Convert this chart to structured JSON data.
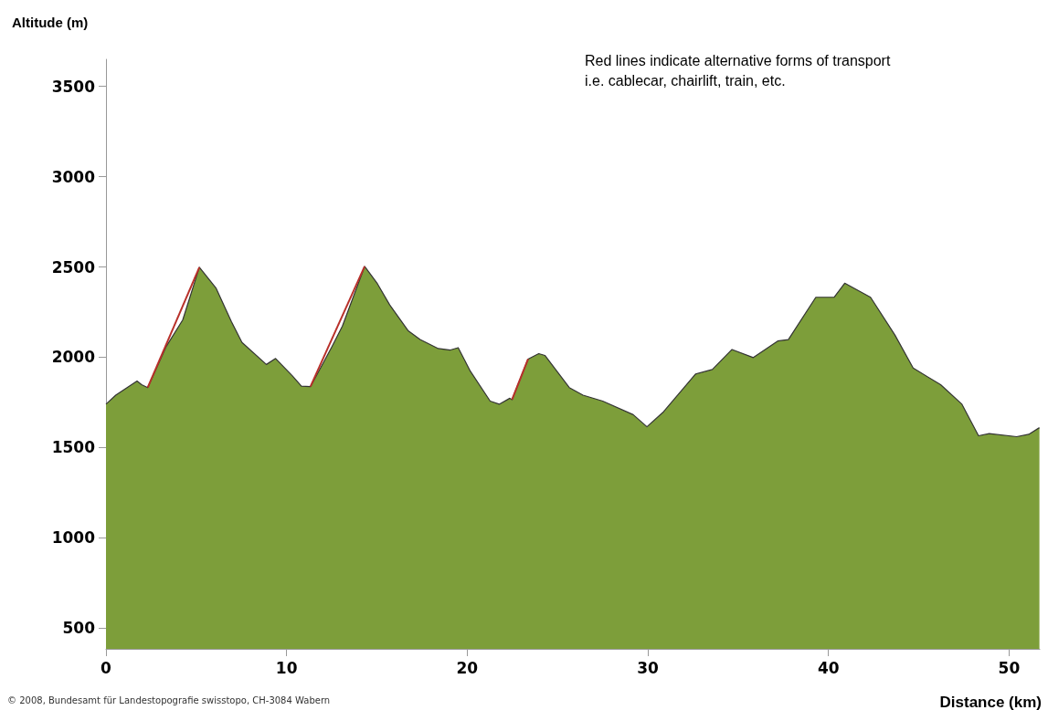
{
  "chart_data": {
    "type": "area",
    "xlabel": "Distance (km)",
    "ylabel": "Altitude (m)",
    "annotations": [
      "Red lines indicate alternative forms of transport\ni.e. cablecar, chairlift, train, etc.",
      "© 2008, Bundesamt für Landestopografie swisstopo, CH-3084 Wabern"
    ],
    "xlim": [
      0,
      51.7
    ],
    "xticks": [
      0,
      10,
      20,
      30,
      40,
      50
    ],
    "ylim": [
      385,
      3650
    ],
    "yticks": [
      500,
      1000,
      1500,
      2000,
      2500,
      3000,
      3500
    ],
    "grid": false,
    "marker": "none",
    "line_style": "solid",
    "series": [
      {
        "color": "#7d9e3a",
        "x": [
          0,
          0.54,
          1.72,
          1.97,
          2.31,
          3.32,
          4.25,
          5.17,
          6.1,
          6.94,
          7.53,
          8.88,
          9.39,
          10.31,
          10.82,
          11.32,
          12.5,
          13.09,
          14.32,
          15.03,
          15.71,
          16.72,
          17.39,
          18.4,
          19.07,
          19.5,
          20.17,
          21.27,
          21.77,
          22.36,
          22.48,
          23.37,
          23.96,
          24.3,
          25.65,
          26.41,
          27.5,
          29.19,
          29.95,
          30.87,
          32.64,
          33.57,
          34.66,
          35.84,
          37.19,
          37.78,
          39.3,
          40.31,
          40.9,
          42.33,
          43.68,
          44.69,
          46.21,
          47.39,
          48.31,
          48.9,
          50.42,
          51.09,
          51.68
        ],
        "values": [
          1740,
          1790,
          1868,
          1848,
          1832,
          2057,
          2207,
          2498,
          2382,
          2198,
          2082,
          1960,
          1993,
          1898,
          1840,
          1837,
          2057,
          2173,
          2503,
          2407,
          2290,
          2148,
          2098,
          2048,
          2040,
          2053,
          1923,
          1757,
          1740,
          1773,
          1765,
          1990,
          2020,
          2010,
          1832,
          1790,
          1757,
          1682,
          1615,
          1698,
          1907,
          1932,
          2043,
          1998,
          2090,
          2098,
          2332,
          2332,
          2410,
          2332,
          2123,
          1940,
          1848,
          1740,
          1565,
          1577,
          1560,
          1573,
          1610
        ]
      },
      {
        "type": "line",
        "color": "#b8302a",
        "x": [
          2.31,
          5.17
        ],
        "values": [
          1832,
          2498
        ]
      },
      {
        "type": "line",
        "color": "#b8302a",
        "x": [
          11.32,
          14.32
        ],
        "values": [
          1837,
          2503
        ]
      },
      {
        "type": "line",
        "color": "#b8302a",
        "x": [
          22.48,
          23.37
        ],
        "values": [
          1765,
          1990
        ]
      }
    ]
  }
}
